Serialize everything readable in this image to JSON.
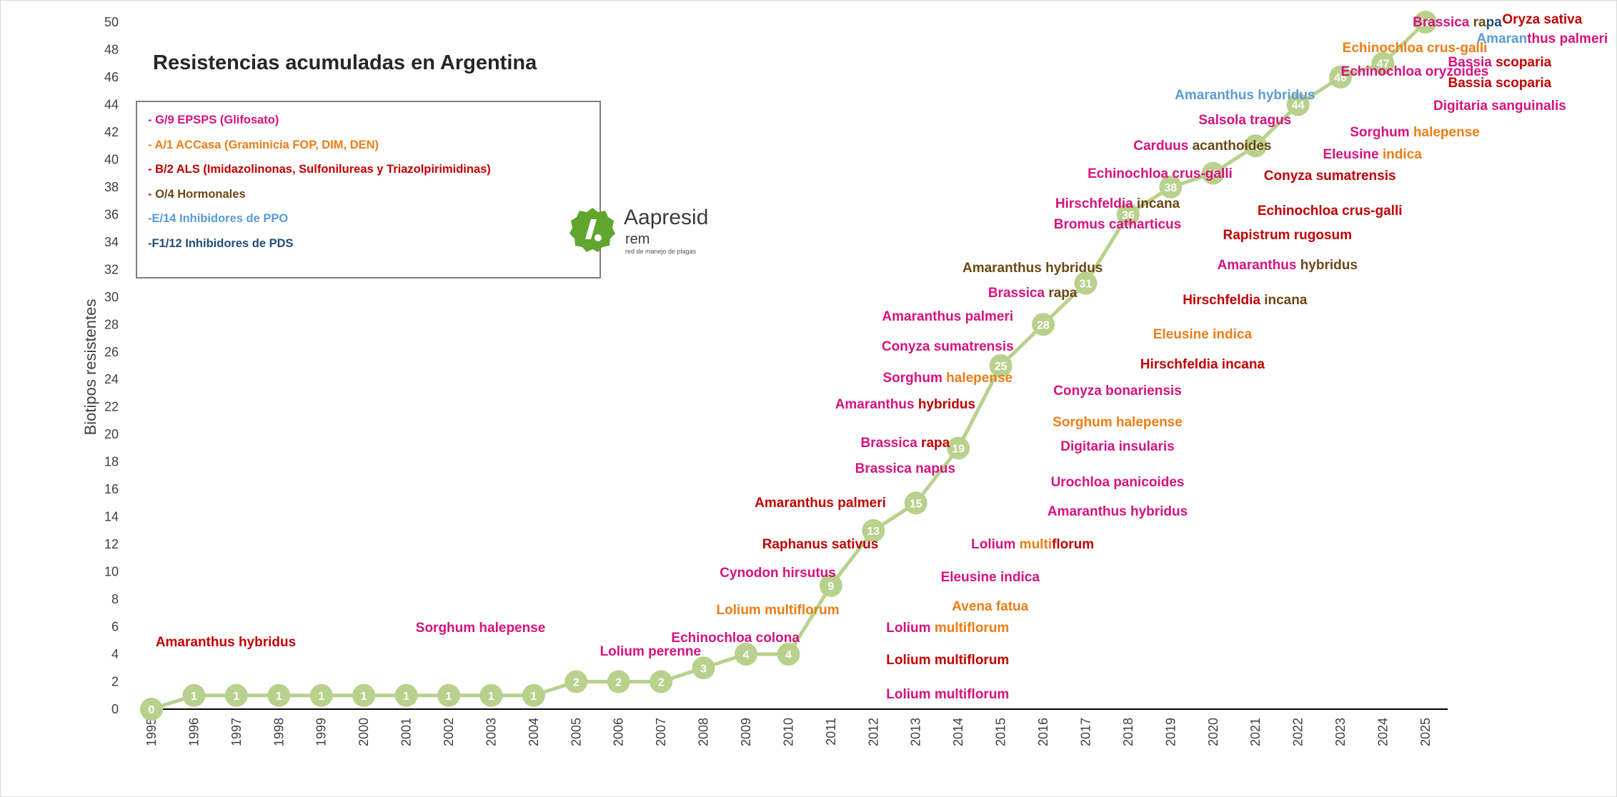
{
  "colors": {
    "glifosato": "#d6127e",
    "accasa": "#ed7d16",
    "als": "#c00000",
    "hormonales": "#6a4814",
    "ppo": "#5b9bd5",
    "pds": "#1f4e79",
    "line": "#b8d18d",
    "axis": "#000000"
  },
  "chart_data": {
    "type": "line",
    "title": "Resistencias acumuladas en Argentina",
    "xlabel": "",
    "ylabel": "Biotipos resistentes",
    "x": [
      "1995",
      "1996",
      "1997",
      "1998",
      "1999",
      "2000",
      "2001",
      "2002",
      "2003",
      "2004",
      "2005",
      "2006",
      "2007",
      "2008",
      "2009",
      "2010",
      "2011",
      "2012",
      "2013",
      "2014",
      "2015",
      "2016",
      "2017",
      "2018",
      "2019",
      "2020",
      "2021",
      "2022",
      "2023",
      "2024",
      "2025"
    ],
    "series": [
      {
        "values": [
          0,
          1,
          1,
          1,
          1,
          1,
          1,
          1,
          1,
          1,
          2,
          2,
          2,
          3,
          4,
          4,
          9,
          13,
          15,
          19,
          25,
          28,
          31,
          36,
          38,
          39,
          41,
          44,
          46,
          47,
          50
        ]
      }
    ],
    "ylim": [
      0,
      50
    ],
    "yticks": [
      0,
      2,
      4,
      6,
      8,
      10,
      12,
      14,
      16,
      18,
      20,
      22,
      24,
      26,
      28,
      30,
      32,
      34,
      36,
      38,
      40,
      42,
      44,
      46,
      48,
      50
    ],
    "grid": false,
    "legend_placement": "top-left",
    "legend": [
      {
        "text": "- G/9 EPSPS (Glifosato)",
        "color": "glifosato"
      },
      {
        "text": "- A/1 ACCasa (Graminicia FOP, DIM, DEN)",
        "color": "accasa"
      },
      {
        "text": "- B/2 ALS (Imidazolinonas, Sulfonilureas y Triazolpirimidinas)",
        "color": "als"
      },
      {
        "text": "- O/4 Hormonales",
        "color": "hormonales"
      },
      {
        "text": "-E/14 Inhibidores de PPO",
        "color": "ppo"
      },
      {
        "text": "-F1/12  Inhibidores de PDS",
        "color": "pds"
      }
    ],
    "annotations": [
      {
        "year": "1995",
        "y_level": 4.8,
        "parts": [
          [
            "Amaranthus",
            "als"
          ],
          [
            " hybridus",
            "als"
          ]
        ]
      },
      {
        "year": "2001",
        "y_level": 5.8,
        "parts": [
          [
            "Sorghum halepense",
            "glifosato"
          ]
        ]
      },
      {
        "year": "2005",
        "y_level": 4.1,
        "parts": [
          [
            "Lolium perenne",
            "glifosato"
          ]
        ]
      },
      {
        "year": "2007",
        "y_level": 5.1,
        "parts": [
          [
            "Echinochloa colona",
            "glifosato"
          ]
        ]
      },
      {
        "year": "2008",
        "y_level": 7.1,
        "parts": [
          [
            "Lolium multiflorum",
            "accasa"
          ]
        ]
      },
      {
        "year": "2008",
        "y_level": 9.8,
        "parts": [
          [
            "Cynodon hirsutus",
            "glifosato"
          ]
        ]
      },
      {
        "year": "2009",
        "y_level": 11.9,
        "parts": [
          [
            "Raphanus sativus",
            "als"
          ]
        ]
      },
      {
        "year": "2009",
        "y_level": 14.9,
        "parts": [
          [
            "Amaranthus palmeri",
            "als"
          ]
        ]
      },
      {
        "year": "2011",
        "y_level": 17.4,
        "parts": [
          [
            "Brassica napus",
            "glifosato"
          ]
        ]
      },
      {
        "year": "2011",
        "y_level": 19.3,
        "parts": [
          [
            "Brassica",
            "glifosato"
          ],
          [
            " rapa",
            "als"
          ]
        ]
      },
      {
        "year": "2011",
        "y_level": 22.1,
        "parts": [
          [
            "Amaranthus",
            "glifosato"
          ],
          [
            " hybridus",
            "als"
          ]
        ]
      },
      {
        "year": "2012",
        "y_level": 24.0,
        "parts": [
          [
            "Sorghum",
            "glifosato"
          ],
          [
            " halepense",
            "accasa"
          ]
        ]
      },
      {
        "year": "2012",
        "y_level": 26.3,
        "parts": [
          [
            "Conyza sumatrensis",
            "glifosato"
          ]
        ]
      },
      {
        "year": "2012",
        "y_level": 28.5,
        "parts": [
          [
            "Amaranthus palmeri",
            "glifosato"
          ]
        ]
      },
      {
        "year": "2012",
        "y_level": 1.0,
        "parts": [
          [
            "Lolium multiflorum",
            "glifosato"
          ]
        ]
      },
      {
        "year": "2012",
        "y_level": 3.5,
        "parts": [
          [
            "Lolium multiflorum",
            "als"
          ]
        ]
      },
      {
        "year": "2012",
        "y_level": 5.8,
        "parts": [
          [
            "Lolium",
            "glifosato"
          ],
          [
            " multiflorum",
            "accasa"
          ]
        ]
      },
      {
        "year": "2013",
        "y_level": 7.4,
        "parts": [
          [
            "Avena fatua",
            "accasa"
          ]
        ]
      },
      {
        "year": "2013",
        "y_level": 9.5,
        "parts": [
          [
            "Eleusine indica",
            "glifosato"
          ]
        ]
      },
      {
        "year": "2014",
        "y_level": 30.2,
        "parts": [
          [
            "Brassica",
            "glifosato"
          ],
          [
            " rapa",
            "hormonales"
          ]
        ]
      },
      {
        "year": "2014",
        "y_level": 32.0,
        "parts": [
          [
            "Amaranthus hybridus",
            "hormonales"
          ]
        ]
      },
      {
        "year": "2014",
        "y_level": 11.9,
        "parts": [
          [
            "Lolium",
            "glifosato"
          ],
          [
            " multi",
            "accasa"
          ],
          [
            "florum",
            "als"
          ]
        ]
      },
      {
        "year": "2016",
        "y_level": 14.3,
        "parts": [
          [
            "Amaranthus hybridus",
            "glifosato"
          ]
        ]
      },
      {
        "year": "2016",
        "y_level": 16.4,
        "parts": [
          [
            "Urochloa panicoides",
            "glifosato"
          ]
        ]
      },
      {
        "year": "2016",
        "y_level": 19.0,
        "parts": [
          [
            "Digitaria insularis",
            "glifosato"
          ]
        ]
      },
      {
        "year": "2016",
        "y_level": 20.8,
        "parts": [
          [
            "Sorghum halepense",
            "accasa"
          ]
        ]
      },
      {
        "year": "2016",
        "y_level": 23.1,
        "parts": [
          [
            "Conyza bonariensis",
            "glifosato"
          ]
        ]
      },
      {
        "year": "2016",
        "y_level": 35.2,
        "parts": [
          [
            "Bromus catharticus",
            "glifosato"
          ]
        ]
      },
      {
        "year": "2016",
        "y_level": 36.7,
        "parts": [
          [
            "Hirschfeldia",
            "glifosato"
          ],
          [
            " incana",
            "hormonales"
          ]
        ]
      },
      {
        "year": "2017",
        "y_level": 38.9,
        "parts": [
          [
            "Echinochloa crus-galli",
            "glifosato"
          ]
        ]
      },
      {
        "year": "2018",
        "y_level": 40.9,
        "parts": [
          [
            "Carduus",
            "glifosato"
          ],
          [
            " acanthoides",
            "hormonales"
          ]
        ]
      },
      {
        "year": "2018",
        "y_level": 25.0,
        "parts": [
          [
            "Hirschfeldia incana",
            "als"
          ]
        ]
      },
      {
        "year": "2018",
        "y_level": 27.2,
        "parts": [
          [
            "Eleusine indica",
            "accasa"
          ]
        ]
      },
      {
        "year": "2019",
        "y_level": 29.7,
        "parts": [
          [
            "Hirschfeldia",
            "als"
          ],
          [
            " incana",
            "hormonales"
          ]
        ]
      },
      {
        "year": "2020",
        "y_level": 32.2,
        "parts": [
          [
            "Amaranthus",
            "glifosato"
          ],
          [
            " hybridus",
            "hormonales"
          ]
        ]
      },
      {
        "year": "2019",
        "y_level": 42.8,
        "parts": [
          [
            "Salsola tragus",
            "glifosato"
          ]
        ]
      },
      {
        "year": "2019",
        "y_level": 44.6,
        "parts": [
          [
            "Amaranthus hybridus",
            "ppo"
          ]
        ]
      },
      {
        "year": "2020",
        "y_level": 34.4,
        "parts": [
          [
            "Rapistrum rugosum",
            "als"
          ]
        ]
      },
      {
        "year": "2021",
        "y_level": 36.2,
        "parts": [
          [
            "Echinochloa crus-galli",
            "als"
          ]
        ]
      },
      {
        "year": "2021",
        "y_level": 38.7,
        "parts": [
          [
            "Conyza sumatrensis",
            "als"
          ]
        ]
      },
      {
        "year": "2022",
        "y_level": 40.3,
        "parts": [
          [
            "Eleusine",
            "glifosato"
          ],
          [
            " indica",
            "accasa"
          ]
        ]
      },
      {
        "year": "2023",
        "y_level": 41.9,
        "parts": [
          [
            "Sorghum",
            "glifosato"
          ],
          [
            " halepense",
            "accasa"
          ]
        ]
      },
      {
        "year": "2023",
        "y_level": 46.3,
        "parts": [
          [
            "Echinochloa oryzoides",
            "glifosato"
          ]
        ]
      },
      {
        "year": "2023",
        "y_level": 48.0,
        "parts": [
          [
            "Echinochloa crus-galli",
            "accasa"
          ]
        ]
      },
      {
        "year": "2024",
        "y_level": 49.9,
        "parts": [
          [
            "Brassica",
            "glifosato"
          ],
          [
            " ra",
            "hormonales"
          ],
          [
            "pa",
            "pds"
          ]
        ]
      },
      {
        "year": "2025",
        "y_level": 43.8,
        "parts": [
          [
            "Digitaria sanguinalis",
            "glifosato"
          ]
        ]
      },
      {
        "year": "2025",
        "y_level": 45.5,
        "parts": [
          [
            "Bassia scoparia",
            "als"
          ]
        ]
      },
      {
        "year": "2025",
        "y_level": 47.0,
        "parts": [
          [
            "Bassia",
            "glifosato"
          ],
          [
            " scoparia",
            "als"
          ]
        ]
      },
      {
        "year": "2026",
        "y_level": 48.7,
        "parts": [
          [
            "Amaran",
            "ppo"
          ],
          [
            "thus palmeri",
            "glifosato"
          ]
        ]
      },
      {
        "year": "2026",
        "y_level": 50.1,
        "parts": [
          [
            "Oryza sativa",
            "als"
          ]
        ]
      }
    ]
  },
  "logo": {
    "word": "Aapresid",
    "sub": "rem",
    "tag": "red de manejo de plagas"
  }
}
